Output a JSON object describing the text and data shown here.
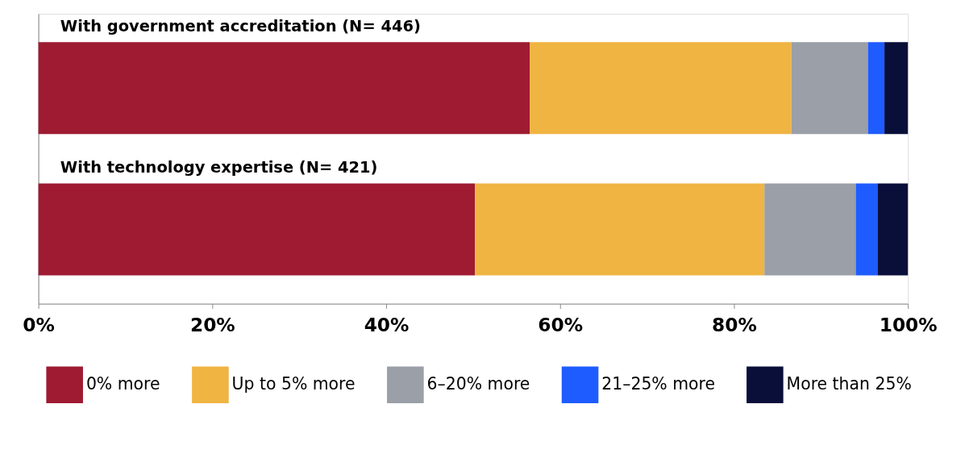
{
  "chart_data": {
    "type": "bar",
    "orientation": "horizontal",
    "stacked": true,
    "categories": [
      "With government accreditation (N= 446)",
      "With technology expertise (N= 421)"
    ],
    "series": [
      {
        "name": "0% more",
        "color": "#9e1b32",
        "values": [
          56.5,
          50.2
        ]
      },
      {
        "name": "Up to 5% more",
        "color": "#f0b443",
        "values": [
          30.1,
          33.3
        ]
      },
      {
        "name": "6–20% more",
        "color": "#9a9fa8",
        "values": [
          8.8,
          10.5
        ]
      },
      {
        "name": "21–25% more",
        "color": "#1f5cff",
        "values": [
          1.9,
          2.5
        ]
      },
      {
        "name": "More than 25%",
        "color": "#0a0f3a",
        "values": [
          2.7,
          3.5
        ]
      }
    ],
    "xlim": [
      0,
      100
    ],
    "xticks": [
      {
        "value": 0,
        "label": "0%"
      },
      {
        "value": 20,
        "label": "20%"
      },
      {
        "value": 40,
        "label": "40%"
      },
      {
        "value": 60,
        "label": "60%"
      },
      {
        "value": 80,
        "label": "80%"
      },
      {
        "value": 100,
        "label": "100%"
      }
    ],
    "tick_labels": "x",
    "grid": false,
    "legend": "bottom"
  }
}
